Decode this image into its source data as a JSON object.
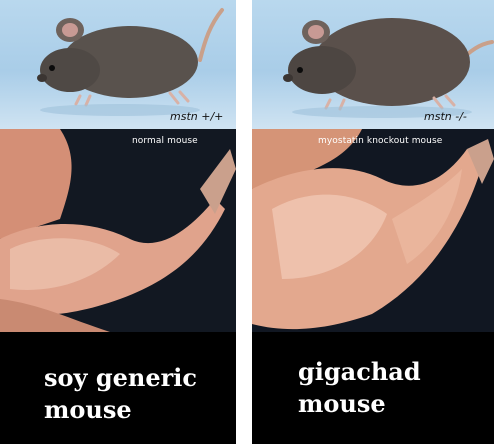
{
  "panels": [
    {
      "genotype_label": "mstn +/+",
      "image_label": "normal mouse",
      "caption": "soy generic\nmouse"
    },
    {
      "genotype_label": "mstn -/-",
      "image_label": "myostatin knockout mouse",
      "caption": "gigachad\nmouse"
    }
  ],
  "colors": {
    "caption_bg": "#000000",
    "caption_text": "#ffffff",
    "photo_sky": "#b9d8ee",
    "mouse_fur": "#5a524c",
    "muscle": "#e2a48c"
  }
}
